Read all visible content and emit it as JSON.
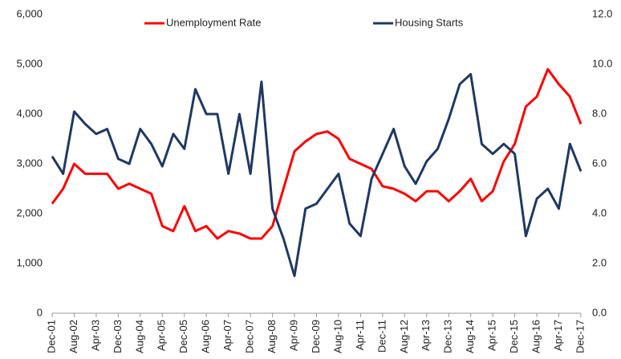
{
  "chart_data": {
    "type": "line",
    "categories": [
      "Dec-01",
      null,
      "Aug-02",
      null,
      "Apr-03",
      null,
      "Dec-03",
      null,
      "Aug-04",
      null,
      "Apr-05",
      null,
      "Dec-05",
      null,
      "Aug-06",
      null,
      "Apr-07",
      null,
      "Dec-07",
      null,
      "Aug-08",
      null,
      "Apr-09",
      null,
      "Dec-09",
      null,
      "Aug-10",
      null,
      "Apr-11",
      null,
      "Dec-11",
      null,
      "Aug-12",
      null,
      "Apr-13",
      null,
      "Dec-13",
      null,
      "Aug-14",
      null,
      "Apr-15",
      null,
      "Dec-15",
      null,
      "Aug-16",
      null,
      "Apr-17",
      null,
      "Dec-17"
    ],
    "series": [
      {
        "name": "Unemployment Rate",
        "color": "#ff0000",
        "axis": "y2",
        "values": [
          4.4,
          5.0,
          6.0,
          5.6,
          5.6,
          5.6,
          5.0,
          5.2,
          5.0,
          4.8,
          3.5,
          3.3,
          4.3,
          3.3,
          3.5,
          3.0,
          3.3,
          3.2,
          3.0,
          3.0,
          3.5,
          5.0,
          6.5,
          6.9,
          7.2,
          7.3,
          7.0,
          6.2,
          6.0,
          5.8,
          5.1,
          5.0,
          4.8,
          4.5,
          4.9,
          4.9,
          4.5,
          4.9,
          5.4,
          4.5,
          4.9,
          6.1,
          6.8,
          8.3,
          8.7,
          9.8,
          9.2,
          8.7,
          7.6
        ]
      },
      {
        "name": "Housing Starts",
        "color": "#1f3864",
        "values": [
          3150,
          2800,
          4050,
          3800,
          3600,
          3700,
          3100,
          3000,
          3700,
          3400,
          2950,
          3600,
          3300,
          4500,
          4000,
          4000,
          2800,
          4000,
          2800,
          4650,
          2100,
          1500,
          750,
          2100,
          2200,
          2500,
          2800,
          1800,
          1550,
          2700,
          3200,
          3700,
          2950,
          2600,
          3050,
          3300,
          3900,
          4600,
          4800,
          3400,
          3200,
          3400,
          3200,
          1550,
          2300,
          2500,
          2100,
          3400,
          2850
        ]
      }
    ],
    "ylim": [
      0,
      6000
    ],
    "yticks": [
      0,
      {
        "value": 1000,
        "label": "1,000"
      },
      {
        "value": 2000,
        "label": "2,000"
      },
      {
        "value": 3000,
        "label": "3,000"
      },
      {
        "value": 4000,
        "label": "4,000"
      },
      {
        "value": 5000,
        "label": "5,000"
      },
      {
        "value": 6000,
        "label": "6,000"
      }
    ],
    "y2lim": [
      0,
      12
    ],
    "y2ticks": [
      {
        "value": 0,
        "label": "0.0"
      },
      {
        "value": 2,
        "label": "2.0"
      },
      {
        "value": 4,
        "label": "4.0"
      },
      {
        "value": 6,
        "label": "6.0"
      },
      {
        "value": 8,
        "label": "8.0"
      },
      {
        "value": 10,
        "label": "10.0"
      },
      {
        "value": 12,
        "label": "12.0"
      }
    ],
    "grid": false,
    "legend": "top"
  }
}
